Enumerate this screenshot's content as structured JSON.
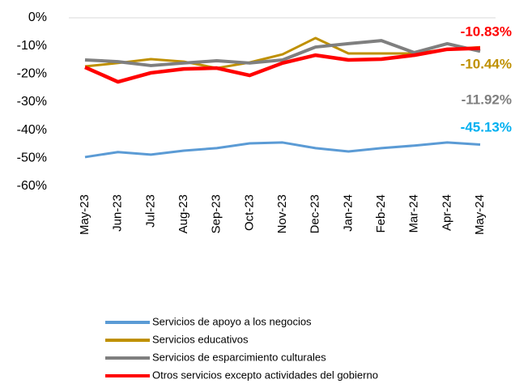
{
  "chart_data": {
    "type": "line",
    "categories": [
      "May-23",
      "Jun-23",
      "Jul-23",
      "Aug-23",
      "Sep-23",
      "Oct-23",
      "Nov-23",
      "Dec-23",
      "Jan-24",
      "Feb-24",
      "Mar-24",
      "Apr-24",
      "May-24"
    ],
    "ylim": [
      -60,
      0
    ],
    "yticks": [
      {
        "value": 0,
        "label": "0%"
      },
      {
        "value": -10,
        "label": "-10%"
      },
      {
        "value": -20,
        "label": "-20%"
      },
      {
        "value": -30,
        "label": "-30%"
      },
      {
        "value": -40,
        "label": "-40%"
      },
      {
        "value": -50,
        "label": "-50%"
      },
      {
        "value": -60,
        "label": "-60%"
      }
    ],
    "grid": false,
    "series": [
      {
        "name": "Servicios de apoyo a los negocios",
        "color": "#5b9bd5",
        "label_color": "#00b0f0",
        "values": [
          -49.6,
          -47.8,
          -48.7,
          -47.3,
          -46.4,
          -44.7,
          -44.4,
          -46.4,
          -47.6,
          -46.4,
          -45.5,
          -44.4,
          -45.13
        ],
        "value_labels": [
          null,
          null,
          null,
          null,
          null,
          null,
          null,
          null,
          null,
          null,
          null,
          null,
          "-45.13%"
        ]
      },
      {
        "name": "Servicios educativos",
        "color": "#bf9000",
        "label_color": "#bf9000",
        "values": [
          -17.3,
          -16.1,
          -14.7,
          -15.6,
          -17.9,
          -15.9,
          -13.0,
          -7.2,
          -12.7,
          -12.7,
          -12.7,
          -11.2,
          -10.44
        ],
        "value_labels": [
          null,
          null,
          null,
          null,
          null,
          null,
          null,
          null,
          null,
          null,
          null,
          null,
          "-10.44%"
        ]
      },
      {
        "name": "Servicios de esparcimiento culturales",
        "color": "#7f7f7f",
        "label_color": "#7f7f7f",
        "values": [
          -15.0,
          -15.6,
          -17.0,
          -16.1,
          -15.3,
          -16.1,
          -15.0,
          -10.4,
          -9.2,
          -8.1,
          -12.4,
          -9.2,
          -11.92
        ],
        "value_labels": [
          null,
          null,
          null,
          null,
          null,
          null,
          null,
          null,
          null,
          null,
          null,
          null,
          "-11.92%"
        ]
      },
      {
        "name": "Otros servicios excepto actividades del gobierno",
        "color": "#ff0000",
        "label_color": "#ff0000",
        "values": [
          -17.6,
          -22.8,
          -19.6,
          -18.2,
          -17.9,
          -20.5,
          -16.1,
          -13.3,
          -15.0,
          -14.7,
          -13.3,
          -11.2,
          -10.83
        ],
        "value_labels": [
          null,
          null,
          null,
          null,
          null,
          null,
          null,
          null,
          null,
          null,
          null,
          null,
          "-10.83%"
        ]
      }
    ]
  }
}
